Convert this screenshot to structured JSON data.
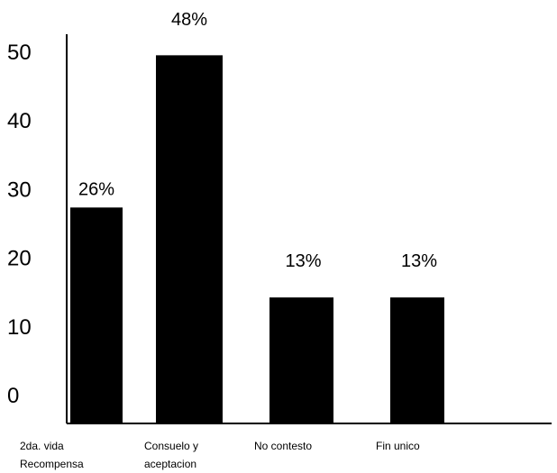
{
  "chart_data": {
    "type": "bar",
    "title": "",
    "xlabel": "",
    "ylabel": "",
    "categories": [
      [
        "2da. vida",
        "Recompensa"
      ],
      [
        "Consuelo y",
        "aceptacion"
      ],
      [
        "No contesto"
      ],
      [
        "Fin unico"
      ]
    ],
    "values": [
      26,
      48,
      13,
      13
    ],
    "bar_labels": [
      "26%",
      "48%",
      "13%",
      "13%"
    ],
    "yticks": [
      0,
      10,
      20,
      30,
      40,
      50
    ],
    "ylim": [
      0,
      50
    ],
    "grid": false,
    "legend": "none",
    "bar_color": "#000000"
  }
}
